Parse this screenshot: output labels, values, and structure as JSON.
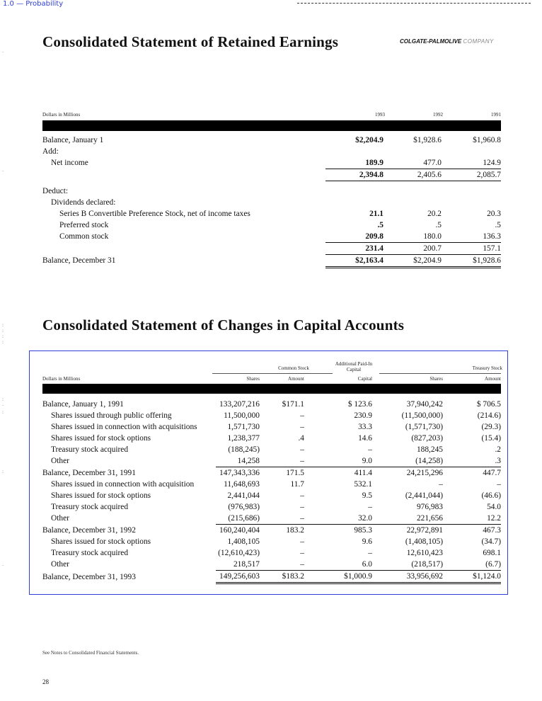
{
  "overlay_label": "1.0 — Probability",
  "brand": {
    "name": "COLGATE-PALMOLIVE",
    "suffix": "COMPANY"
  },
  "retained": {
    "title": "Consolidated Statement of Retained Earnings",
    "unit_label": "Dollars in Millions",
    "years": [
      "1993",
      "1992",
      "1991"
    ],
    "rows": [
      {
        "label": "Balance, January 1",
        "v": [
          "$2,204.9",
          "$1,928.6",
          "$1,960.8"
        ]
      },
      {
        "label": "Add:",
        "v": [
          "",
          "",
          ""
        ]
      },
      {
        "label": "Net income",
        "v": [
          "189.9",
          "477.0",
          "124.9"
        ]
      },
      {
        "label": "",
        "v": [
          "2,394.8",
          "2,405.6",
          "2,085.7"
        ]
      },
      {
        "label": "Deduct:",
        "v": [
          "",
          "",
          ""
        ]
      },
      {
        "label": "Dividends declared:",
        "v": [
          "",
          "",
          ""
        ]
      },
      {
        "label": "Series B Convertible Preference Stock, net of income taxes",
        "v": [
          "21.1",
          "20.2",
          "20.3"
        ]
      },
      {
        "label": "Preferred stock",
        "v": [
          ".5",
          ".5",
          ".5"
        ]
      },
      {
        "label": "Common stock",
        "v": [
          "209.8",
          "180.0",
          "136.3"
        ]
      },
      {
        "label": "",
        "v": [
          "231.4",
          "200.7",
          "157.1"
        ]
      },
      {
        "label": "Balance, December 31",
        "v": [
          "$2,163.4",
          "$2,204.9",
          "$1,928.6"
        ]
      }
    ]
  },
  "capital": {
    "title": "Consolidated Statement of Changes in Capital Accounts",
    "unit_label": "Dollars in Millions",
    "group_common": "Common Stock",
    "group_apic": "Additional Paid-In Capital",
    "group_treasury": "Treasury Stock",
    "col_shares": "Shares",
    "col_amount": "Amount",
    "col_capital": "Capital",
    "rows": [
      {
        "label": "Balance, January 1, 1991",
        "v": [
          "133,207,216",
          "$171.1",
          "$ 123.6",
          "37,940,242",
          "$ 706.5"
        ]
      },
      {
        "label": "Shares issued through public offering",
        "v": [
          "11,500,000",
          "–",
          "230.9",
          "(11,500,000)",
          "(214.6)"
        ]
      },
      {
        "label": "Shares issued in connection with acquisitions",
        "v": [
          "1,571,730",
          "–",
          "33.3",
          "(1,571,730)",
          "(29.3)"
        ]
      },
      {
        "label": "Shares issued for stock options",
        "v": [
          "1,238,377",
          ".4",
          "14.6",
          "(827,203)",
          "(15.4)"
        ]
      },
      {
        "label": "Treasury stock acquired",
        "v": [
          "(188,245)",
          "–",
          "–",
          "188,245",
          ".2"
        ]
      },
      {
        "label": "Other",
        "v": [
          "14,258",
          "–",
          "9.0",
          "(14,258)",
          ".3"
        ]
      },
      {
        "label": "Balance, December 31, 1991",
        "v": [
          "147,343,336",
          "171.5",
          "411.4",
          "24,215,296",
          "447.7"
        ]
      },
      {
        "label": "Shares issued in connection with acquisition",
        "v": [
          "11,648,693",
          "11.7",
          "532.1",
          "–",
          "–"
        ]
      },
      {
        "label": "Shares issued for stock options",
        "v": [
          "2,441,044",
          "–",
          "9.5",
          "(2,441,044)",
          "(46.6)"
        ]
      },
      {
        "label": "Treasury stock acquired",
        "v": [
          "(976,983)",
          "–",
          "–",
          "976,983",
          "54.0"
        ]
      },
      {
        "label": "Other",
        "v": [
          "(215,686)",
          "–",
          "32.0",
          "221,656",
          "12.2"
        ]
      },
      {
        "label": "Balance, December 31, 1992",
        "v": [
          "160,240,404",
          "183.2",
          "985.3",
          "22,972,891",
          "467.3"
        ]
      },
      {
        "label": "Shares issued for stock options",
        "v": [
          "1,408,105",
          "–",
          "9.6",
          "(1,408,105)",
          "(34.7)"
        ]
      },
      {
        "label": "Treasury stock acquired",
        "v": [
          "(12,610,423)",
          "–",
          "–",
          "12,610,423",
          "698.1"
        ]
      },
      {
        "label": "Other",
        "v": [
          "218,517",
          "–",
          "6.0",
          "(218,517)",
          "(6.7)"
        ]
      },
      {
        "label": "Balance, December 31, 1993",
        "v": [
          "149,256,603",
          "$183.2",
          "$1,000.9",
          "33,956,692",
          "$1,124.0"
        ]
      }
    ]
  },
  "footnote": "See Notes to Consolidated Financial Statements.",
  "page_number": "28"
}
